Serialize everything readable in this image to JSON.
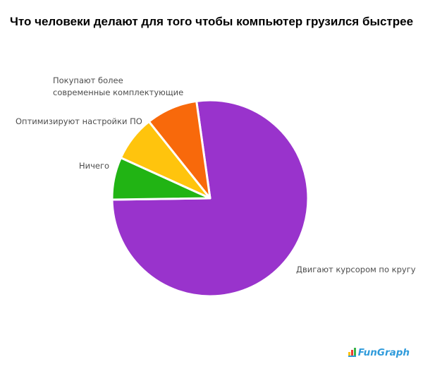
{
  "title": "Что человеки делают для того чтобы компьютер грузился быстрее",
  "labels": {
    "buy": "Покупают более\nсовременные комплектующие",
    "optimize": "Оптимизируют настройки ПО",
    "nothing": "Ничего",
    "cursor": "Двигают курсором по кругу"
  },
  "chart_data": {
    "type": "pie",
    "title": "Что человеки делают для того чтобы компьютер грузился быстрее",
    "slices": [
      {
        "label": "Двигают курсором по кругу",
        "value": 77,
        "color": "#9933cc"
      },
      {
        "label": "Ничего",
        "value": 7,
        "color": "#21b414"
      },
      {
        "label": "Оптимизируют настройки ПО",
        "value": 7.5,
        "color": "#ffc40d"
      },
      {
        "label": "Покупают более современные комплектующие",
        "value": 8.5,
        "color": "#f8690b"
      }
    ],
    "start_angle_deg": -8,
    "direction": "clockwise",
    "legend": "none",
    "label_position": "outside",
    "slice_gap_color": "#ffffff"
  },
  "logo": {
    "icon": "bar-chart-icon",
    "text": "FunGraph",
    "color": "#2f9bdb"
  }
}
